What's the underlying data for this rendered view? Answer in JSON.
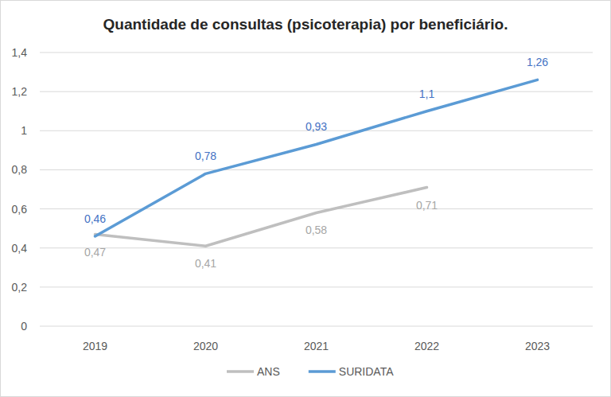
{
  "chart_data": {
    "type": "line",
    "title": "Quantidade de consultas (psicoterapia) por beneficiário.",
    "categories": [
      "2019",
      "2020",
      "2021",
      "2022",
      "2023"
    ],
    "series": [
      {
        "name": "ANS",
        "color": "#bfbfbf",
        "values": [
          0.47,
          0.41,
          0.58,
          0.71,
          null
        ],
        "value_labels": [
          "0,47",
          "0,41",
          "0,58",
          "0,71",
          null
        ]
      },
      {
        "name": "SURIDATA",
        "color": "#5b9bd5",
        "values": [
          0.46,
          0.78,
          0.93,
          1.1,
          1.26
        ],
        "value_labels": [
          "0,46",
          "0,78",
          "0,93",
          "1,1",
          "1,26"
        ]
      }
    ],
    "ylim": [
      0,
      1.4
    ],
    "yticks": [
      0,
      {
        "value": 0.2,
        "label": "0,2"
      },
      {
        "value": 0.4,
        "label": "0,4"
      },
      {
        "value": 0.6,
        "label": "0,6"
      },
      {
        "value": 0.8,
        "label": "0,8"
      },
      1,
      {
        "value": 1.2,
        "label": "1,2"
      },
      {
        "value": 1.4,
        "label": "1,4"
      }
    ],
    "grid": true,
    "data_labels": true,
    "legend": "bottom"
  }
}
